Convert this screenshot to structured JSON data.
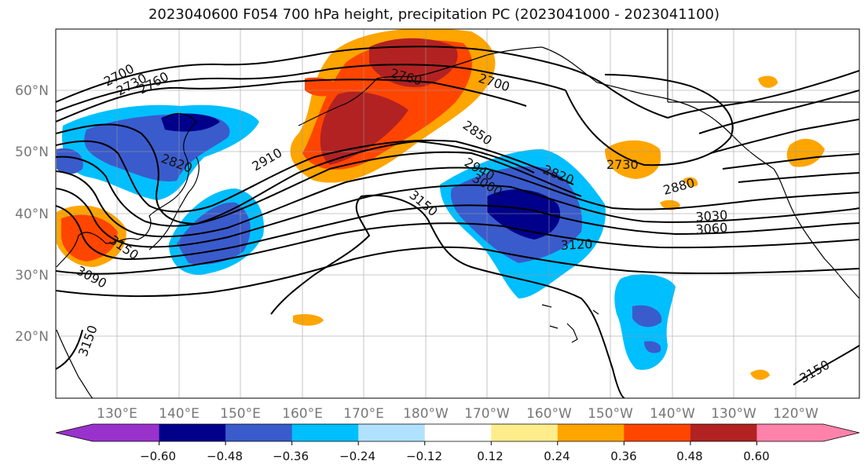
{
  "title": "2023040600 F054 700 hPa height, precipitation PC (2023041000 - 2023041100)",
  "lat_labels": [
    "60°N",
    "50°N",
    "40°N",
    "30°N",
    "20°N"
  ],
  "lon_labels": [
    "130°E",
    "140°E",
    "150°E",
    "160°E",
    "170°E",
    "180°W",
    "170°W",
    "160°W",
    "150°W",
    "140°W",
    "130°W",
    "120°W"
  ],
  "contour_labels": [
    "2700",
    "2730",
    "2760",
    "2760",
    "2700",
    "2820",
    "2910",
    "2850",
    "2940",
    "3000",
    "2820",
    "2730",
    "2880",
    "3030",
    "3060",
    "3120",
    "3150",
    "3090",
    "3150",
    "3150",
    "3150"
  ],
  "colorbar": {
    "colors": [
      "#9932cc",
      "#00008b",
      "#3a5bcc",
      "#00bfff",
      "#b0e2ff",
      "#ffffff",
      "#ffec8b",
      "#ffa500",
      "#ff4500",
      "#b22222",
      "#ff82ab"
    ],
    "tick_labels": [
      "−0.60",
      "−0.48",
      "−0.36",
      "−0.24",
      "−0.12",
      "0.12",
      "0.24",
      "0.36",
      "0.48",
      "0.60"
    ]
  }
}
